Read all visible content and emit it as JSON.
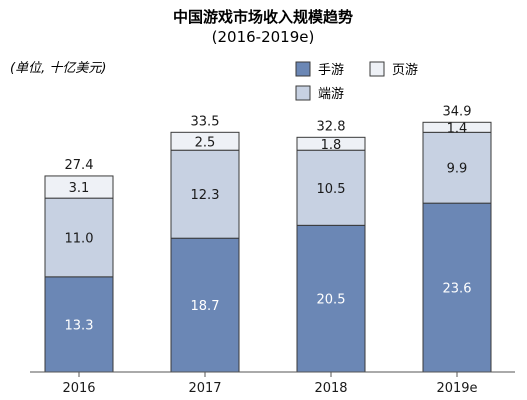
{
  "chart_data": {
    "type": "bar",
    "stacked": true,
    "title": "中国游戏市场收入规模趋势",
    "subtitle": "(2016-2019e)",
    "unit_label": "(单位, 十亿美元)",
    "categories": [
      "2016",
      "2017",
      "2018",
      "2019e"
    ],
    "series": [
      {
        "name": "手游",
        "values": [
          13.3,
          18.7,
          20.5,
          23.6
        ],
        "color": "#6b87b5",
        "label_color": "#ffffff"
      },
      {
        "name": "端游",
        "values": [
          11.0,
          12.3,
          10.5,
          9.9
        ],
        "color": "#c7d1e2",
        "label_color": "#1a1a1a"
      },
      {
        "name": "页游",
        "values": [
          3.1,
          2.5,
          1.8,
          1.4
        ],
        "color": "#eef1f6",
        "label_color": "#1a1a1a"
      }
    ],
    "value_labels": [
      [
        "13.3",
        "18.7",
        "20.5",
        "23.6"
      ],
      [
        "11.0",
        "12.3",
        "10.5",
        "9.9"
      ],
      [
        "3.1",
        "2.5",
        "1.8",
        "1.4"
      ]
    ],
    "totals": [
      "27.4",
      "33.5",
      "32.8",
      "34.9"
    ],
    "ylim": [
      0,
      35.5
    ],
    "grid": false,
    "legend_position": "top-right",
    "border_color": "#3a3a3a"
  }
}
